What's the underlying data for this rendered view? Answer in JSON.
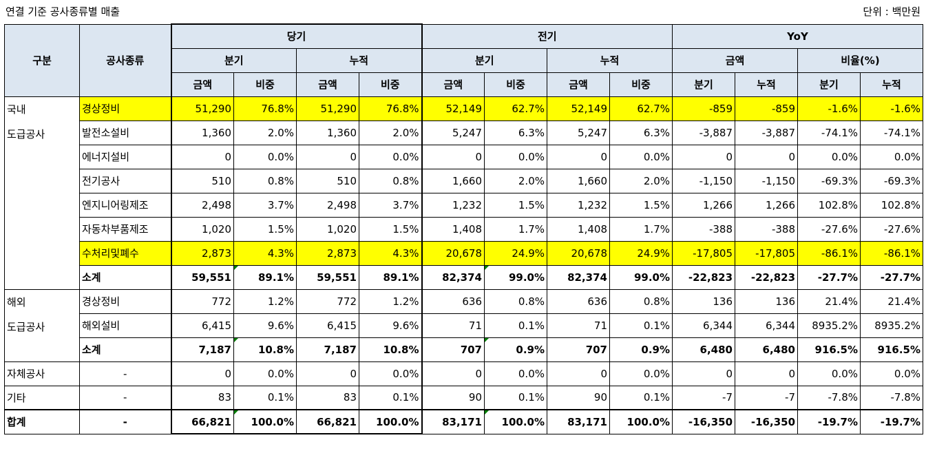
{
  "caption": {
    "title": "연결 기준 공사종류별 매출",
    "unit": "단위 : 백만원"
  },
  "headers": {
    "gubun": "구분",
    "type": "공사종류",
    "current": "당기",
    "prior": "전기",
    "yoy": "YoY",
    "quarter": "분기",
    "cumulative": "누적",
    "amount": "금액",
    "ratio": "비율(%)",
    "share": "비중"
  },
  "groups": {
    "domestic": {
      "line1": "국내",
      "line2": "도급공사"
    },
    "overseas": {
      "line1": "해외",
      "line2": "도급공사"
    }
  },
  "rows": [
    {
      "type": "경상정비",
      "v": [
        "51,290",
        "76.8%",
        "51,290",
        "76.8%",
        "52,149",
        "62.7%",
        "52,149",
        "62.7%",
        "-859",
        "-859",
        "-1.6%",
        "-1.6%"
      ]
    },
    {
      "type": "발전소설비",
      "v": [
        "1,360",
        "2.0%",
        "1,360",
        "2.0%",
        "5,247",
        "6.3%",
        "5,247",
        "6.3%",
        "-3,887",
        "-3,887",
        "-74.1%",
        "-74.1%"
      ]
    },
    {
      "type": "에너지설비",
      "v": [
        "0",
        "0.0%",
        "0",
        "0.0%",
        "0",
        "0.0%",
        "0",
        "0.0%",
        "0",
        "0",
        "0.0%",
        "0.0%"
      ]
    },
    {
      "type": "전기공사",
      "v": [
        "510",
        "0.8%",
        "510",
        "0.8%",
        "1,660",
        "2.0%",
        "1,660",
        "2.0%",
        "-1,150",
        "-1,150",
        "-69.3%",
        "-69.3%"
      ]
    },
    {
      "type": "엔지니어링제조",
      "v": [
        "2,498",
        "3.7%",
        "2,498",
        "3.7%",
        "1,232",
        "1.5%",
        "1,232",
        "1.5%",
        "1,266",
        "1,266",
        "102.8%",
        "102.8%"
      ]
    },
    {
      "type": "자동차부품제조",
      "v": [
        "1,020",
        "1.5%",
        "1,020",
        "1.5%",
        "1,408",
        "1.7%",
        "1,408",
        "1.7%",
        "-388",
        "-388",
        "-27.6%",
        "-27.6%"
      ]
    },
    {
      "type": "수처리및폐수",
      "v": [
        "2,873",
        "4.3%",
        "2,873",
        "4.3%",
        "20,678",
        "24.9%",
        "20,678",
        "24.9%",
        "-17,805",
        "-17,805",
        "-86.1%",
        "-86.1%"
      ]
    },
    {
      "type": "소계",
      "v": [
        "59,551",
        "89.1%",
        "59,551",
        "89.1%",
        "82,374",
        "99.0%",
        "82,374",
        "99.0%",
        "-22,823",
        "-22,823",
        "-27.7%",
        "-27.7%"
      ]
    },
    {
      "type": "경상정비",
      "v": [
        "772",
        "1.2%",
        "772",
        "1.2%",
        "636",
        "0.8%",
        "636",
        "0.8%",
        "136",
        "136",
        "21.4%",
        "21.4%"
      ]
    },
    {
      "type": "해외설비",
      "v": [
        "6,415",
        "9.6%",
        "6,415",
        "9.6%",
        "71",
        "0.1%",
        "71",
        "0.1%",
        "6,344",
        "6,344",
        "8935.2%",
        "8935.2%"
      ]
    },
    {
      "type": "소계",
      "v": [
        "7,187",
        "10.8%",
        "7,187",
        "10.8%",
        "707",
        "0.9%",
        "707",
        "0.9%",
        "6,480",
        "6,480",
        "916.5%",
        "916.5%"
      ]
    },
    {
      "label": "자체공사",
      "type": "-",
      "v": [
        "0",
        "0.0%",
        "0",
        "0.0%",
        "0",
        "0.0%",
        "0",
        "0.0%",
        "0",
        "0",
        "0.0%",
        "0.0%"
      ]
    },
    {
      "label": "기타",
      "type": "-",
      "v": [
        "83",
        "0.1%",
        "83",
        "0.1%",
        "90",
        "0.1%",
        "90",
        "0.1%",
        "-7",
        "-7",
        "-7.8%",
        "-7.8%"
      ]
    },
    {
      "label": "합계",
      "type": "-",
      "v": [
        "66,821",
        "100.0%",
        "66,821",
        "100.0%",
        "83,171",
        "100.0%",
        "83,171",
        "100.0%",
        "-16,350",
        "-16,350",
        "-19.7%",
        "-19.7%"
      ]
    }
  ]
}
